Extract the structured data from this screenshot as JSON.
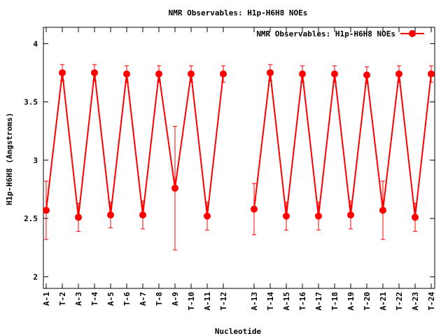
{
  "chart_data": {
    "type": "line",
    "title": "NMR Observables: H1p-H6H8 NOEs",
    "xlabel": "Nucleotide",
    "ylabel": "H1p-H6H8 (Angstroms)",
    "ylim": [
      1.9,
      4.14
    ],
    "yticks": [
      2,
      2.5,
      3,
      3.5,
      4
    ],
    "grid": false,
    "legend_position": "top-right",
    "series_color": "#ff0000",
    "series": [
      {
        "name": "NMR Observables: H1p-H6H8 NOEs",
        "segments": [
          {
            "categories": [
              "A-1",
              "T-2",
              "A-3",
              "T-4",
              "A-5",
              "T-6",
              "A-7",
              "T-8",
              "A-9",
              "T-10",
              "A-11",
              "T-12"
            ],
            "values": [
              2.57,
              3.75,
              2.51,
              3.75,
              2.53,
              3.74,
              2.53,
              3.74,
              2.76,
              3.74,
              2.52,
              3.74
            ],
            "errors": [
              0.25,
              0.07,
              0.12,
              0.07,
              0.11,
              0.07,
              0.12,
              0.07,
              0.53,
              0.07,
              0.12,
              0.07
            ]
          },
          {
            "categories": [
              "A-13",
              "T-14",
              "A-15",
              "T-16",
              "A-17",
              "T-18",
              "A-19",
              "T-20",
              "A-21",
              "T-22",
              "A-23",
              "T-24"
            ],
            "values": [
              2.58,
              3.75,
              2.52,
              3.74,
              2.52,
              3.74,
              2.53,
              3.73,
              2.57,
              3.74,
              2.51,
              3.74
            ],
            "errors": [
              0.22,
              0.07,
              0.12,
              0.07,
              0.12,
              0.07,
              0.12,
              0.07,
              0.25,
              0.07,
              0.12,
              0.07
            ]
          }
        ]
      }
    ]
  }
}
